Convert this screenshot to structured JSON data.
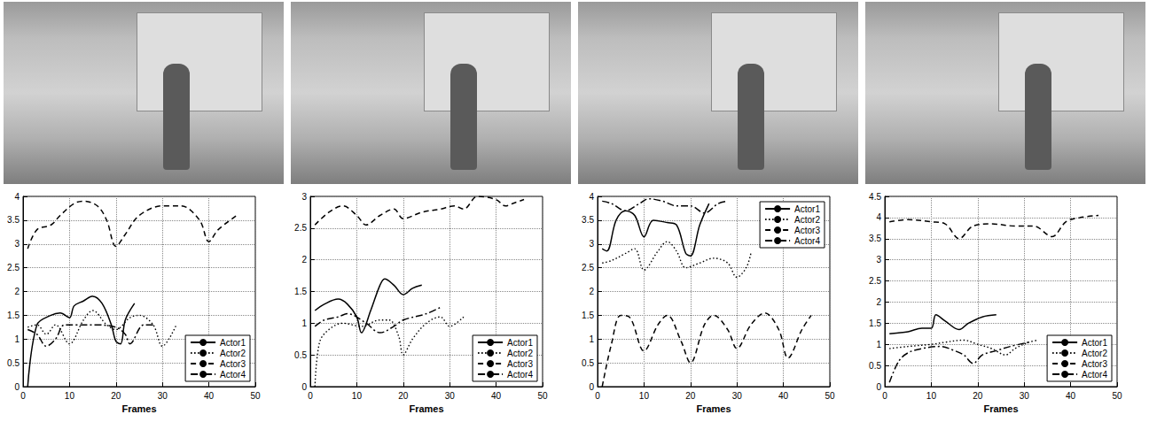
{
  "chart_data": [
    {
      "type": "line",
      "xlabel": "Frames",
      "xlim": [
        0,
        50
      ],
      "xticks": [
        0,
        10,
        20,
        30,
        40,
        50
      ],
      "ylim": [
        0,
        4
      ],
      "yticks": [
        0,
        0.5,
        1,
        1.5,
        2,
        2.5,
        3,
        3.5,
        4
      ],
      "grid": true,
      "legend": "lower right",
      "series": [
        {
          "name": "Actor1",
          "color": "#000000",
          "line_style": "solid",
          "x": [
            1,
            3,
            6,
            8,
            10,
            11,
            13,
            15,
            17,
            19,
            20,
            21,
            22,
            24
          ],
          "values": [
            0,
            1.3,
            1.5,
            1.55,
            1.45,
            1.7,
            1.8,
            1.9,
            1.75,
            1.3,
            0.95,
            0.9,
            1.4,
            1.75
          ]
        },
        {
          "name": "Actor2",
          "color": "#000000",
          "line_style": "dotted",
          "x": [
            1,
            3,
            5,
            7,
            10,
            13,
            15,
            18,
            20,
            23,
            25,
            28,
            30,
            33
          ],
          "values": [
            1.25,
            1.3,
            1.1,
            1.3,
            0.9,
            1.4,
            1.6,
            1.3,
            1.2,
            1.45,
            1.5,
            1.3,
            0.85,
            1.3
          ]
        },
        {
          "name": "Actor3",
          "color": "#000000",
          "line_style": "dashed",
          "x": [
            1,
            3,
            6,
            8,
            11,
            13,
            16,
            18,
            20,
            22,
            25,
            30,
            34,
            38,
            40,
            42,
            46
          ],
          "values": [
            2.9,
            3.3,
            3.4,
            3.6,
            3.85,
            3.9,
            3.8,
            3.5,
            2.95,
            3.2,
            3.6,
            3.8,
            3.8,
            3.5,
            3.05,
            3.3,
            3.6
          ]
        },
        {
          "name": "Actor4",
          "color": "#000000",
          "line_style": "dashdot",
          "x": [
            1,
            3,
            5,
            7,
            9,
            15,
            20,
            22,
            23,
            26,
            28
          ],
          "values": [
            1.2,
            1.1,
            0.85,
            1.0,
            1.3,
            1.3,
            1.25,
            1.1,
            0.9,
            1.3,
            1.3
          ]
        }
      ]
    },
    {
      "type": "line",
      "xlabel": "Frames",
      "xlim": [
        0,
        50
      ],
      "xticks": [
        0,
        10,
        20,
        30,
        40,
        50
      ],
      "ylim": [
        0,
        3
      ],
      "yticks": [
        0,
        0.5,
        1,
        1.5,
        2,
        2.5,
        3
      ],
      "grid": true,
      "legend": "lower right",
      "series": [
        {
          "name": "Actor1",
          "color": "#000000",
          "line_style": "solid",
          "x": [
            1,
            3,
            6,
            8,
            10,
            11,
            13,
            15,
            16,
            18,
            20,
            22,
            24
          ],
          "values": [
            1.2,
            1.3,
            1.38,
            1.3,
            1.1,
            0.85,
            1.2,
            1.6,
            1.7,
            1.6,
            1.45,
            1.55,
            1.6
          ]
        },
        {
          "name": "Actor2",
          "color": "#000000",
          "line_style": "dotted",
          "x": [
            1,
            2,
            4,
            7,
            11,
            15,
            17,
            19,
            20,
            22,
            25,
            28,
            30,
            33
          ],
          "values": [
            0,
            0.7,
            0.9,
            1.0,
            0.95,
            1.05,
            1.05,
            0.8,
            0.5,
            0.75,
            1.0,
            1.1,
            0.95,
            1.1
          ]
        },
        {
          "name": "Actor3",
          "color": "#000000",
          "line_style": "dashed",
          "x": [
            1,
            4,
            7,
            10,
            12,
            15,
            18,
            20,
            24,
            28,
            31,
            33,
            36,
            40,
            42,
            44,
            46
          ],
          "values": [
            2.55,
            2.75,
            2.85,
            2.7,
            2.55,
            2.7,
            2.8,
            2.65,
            2.75,
            2.8,
            2.85,
            2.8,
            3.0,
            2.95,
            2.85,
            2.9,
            2.95
          ]
        },
        {
          "name": "Actor4",
          "color": "#000000",
          "line_style": "dashdot",
          "x": [
            1,
            3,
            6,
            8,
            12,
            15,
            18,
            20,
            25,
            28
          ],
          "values": [
            0.95,
            1.05,
            1.1,
            1.15,
            1.0,
            0.85,
            0.95,
            1.05,
            1.15,
            1.25
          ]
        }
      ]
    },
    {
      "type": "line",
      "xlabel": "Frames",
      "xlim": [
        0,
        50
      ],
      "xticks": [
        0,
        10,
        20,
        30,
        40,
        50
      ],
      "ylim": [
        0,
        4
      ],
      "yticks": [
        0,
        0.5,
        1,
        1.5,
        2,
        2.5,
        3,
        3.5,
        4
      ],
      "grid": true,
      "legend": "upper right",
      "series": [
        {
          "name": "Actor1",
          "color": "#000000",
          "line_style": "solid",
          "x": [
            1,
            2,
            4,
            6,
            8,
            10,
            12,
            15,
            17,
            19,
            20,
            22,
            24
          ],
          "values": [
            2.9,
            2.85,
            3.5,
            3.7,
            3.6,
            3.15,
            3.5,
            3.45,
            3.4,
            2.8,
            2.75,
            3.4,
            3.85
          ]
        },
        {
          "name": "Actor2",
          "color": "#000000",
          "line_style": "dotted",
          "x": [
            1,
            3,
            6,
            8,
            10,
            13,
            15,
            17,
            19,
            22,
            25,
            28,
            30,
            32,
            33
          ],
          "values": [
            2.6,
            2.65,
            2.8,
            2.9,
            2.45,
            2.85,
            3.05,
            2.85,
            2.5,
            2.6,
            2.7,
            2.6,
            2.3,
            2.5,
            2.8
          ]
        },
        {
          "name": "Actor3",
          "color": "#000000",
          "line_style": "dashed",
          "x": [
            1,
            3,
            5,
            7,
            10,
            13,
            15,
            18,
            20,
            23,
            25,
            28,
            30,
            33,
            36,
            39,
            41,
            44,
            46
          ],
          "values": [
            0,
            0.9,
            1.5,
            1.45,
            0.75,
            1.3,
            1.5,
            0.95,
            0.5,
            1.3,
            1.5,
            1.2,
            0.8,
            1.3,
            1.55,
            1.2,
            0.6,
            1.2,
            1.5
          ]
        },
        {
          "name": "Actor4",
          "color": "#000000",
          "line_style": "dashdot",
          "x": [
            1,
            3,
            6,
            9,
            11,
            14,
            17,
            20,
            23,
            26,
            28
          ],
          "values": [
            3.9,
            3.85,
            3.7,
            3.85,
            3.95,
            3.9,
            3.8,
            3.8,
            3.65,
            3.85,
            3.9
          ]
        }
      ]
    },
    {
      "type": "line",
      "xlabel": "Frames",
      "xlim": [
        0,
        50
      ],
      "xticks": [
        0,
        10,
        20,
        30,
        40,
        50
      ],
      "ylim": [
        0,
        4.5
      ],
      "yticks": [
        0,
        0.5,
        1,
        1.5,
        2,
        2.5,
        3,
        3.5,
        4,
        4.5
      ],
      "grid": true,
      "legend": "lower right",
      "series": [
        {
          "name": "Actor1",
          "color": "#000000",
          "line_style": "solid",
          "x": [
            1,
            5,
            8,
            10,
            11,
            13,
            16,
            18,
            21,
            24
          ],
          "values": [
            1.25,
            1.3,
            1.38,
            1.38,
            1.7,
            1.55,
            1.35,
            1.5,
            1.65,
            1.7
          ]
        },
        {
          "name": "Actor2",
          "color": "#000000",
          "line_style": "dotted",
          "x": [
            1,
            5,
            10,
            13,
            17,
            20,
            23,
            26,
            28,
            31,
            33
          ],
          "values": [
            0.9,
            0.95,
            1.0,
            1.05,
            1.1,
            1.0,
            0.9,
            0.75,
            0.9,
            1.05,
            1.1
          ]
        },
        {
          "name": "Actor3",
          "color": "#000000",
          "line_style": "dashed",
          "x": [
            1,
            5,
            10,
            13,
            16,
            19,
            23,
            28,
            32,
            36,
            39,
            42,
            46
          ],
          "values": [
            3.9,
            3.95,
            3.9,
            3.85,
            3.5,
            3.8,
            3.85,
            3.8,
            3.8,
            3.55,
            3.9,
            4.0,
            4.05
          ]
        },
        {
          "name": "Actor4",
          "color": "#000000",
          "line_style": "dashdot",
          "x": [
            1,
            3,
            5,
            8,
            12,
            15,
            17,
            19,
            21,
            24,
            27,
            31
          ],
          "values": [
            0.1,
            0.6,
            0.8,
            0.9,
            0.95,
            0.85,
            0.75,
            0.55,
            0.75,
            0.85,
            0.95,
            1.05
          ]
        }
      ]
    }
  ]
}
